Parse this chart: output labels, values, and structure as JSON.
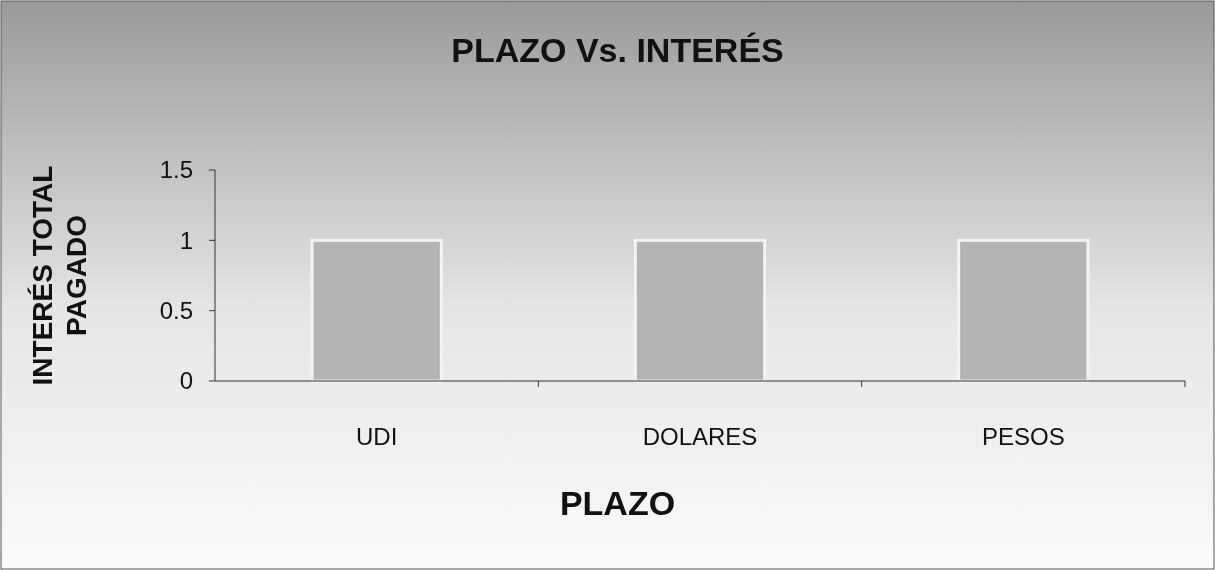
{
  "chart_data": {
    "type": "bar",
    "title": "PLAZO Vs. INTERÉS",
    "xlabel": "PLAZO",
    "ylabel": "INTERÉS TOTAL PAGADO",
    "categories": [
      "UDI",
      "DOLARES",
      "PESOS"
    ],
    "values": [
      1,
      1,
      1
    ],
    "color": "#b4b4b4",
    "ylim": [
      0,
      1.5
    ],
    "yticks": [
      0,
      0.5,
      1,
      1.5
    ],
    "grid": false
  }
}
